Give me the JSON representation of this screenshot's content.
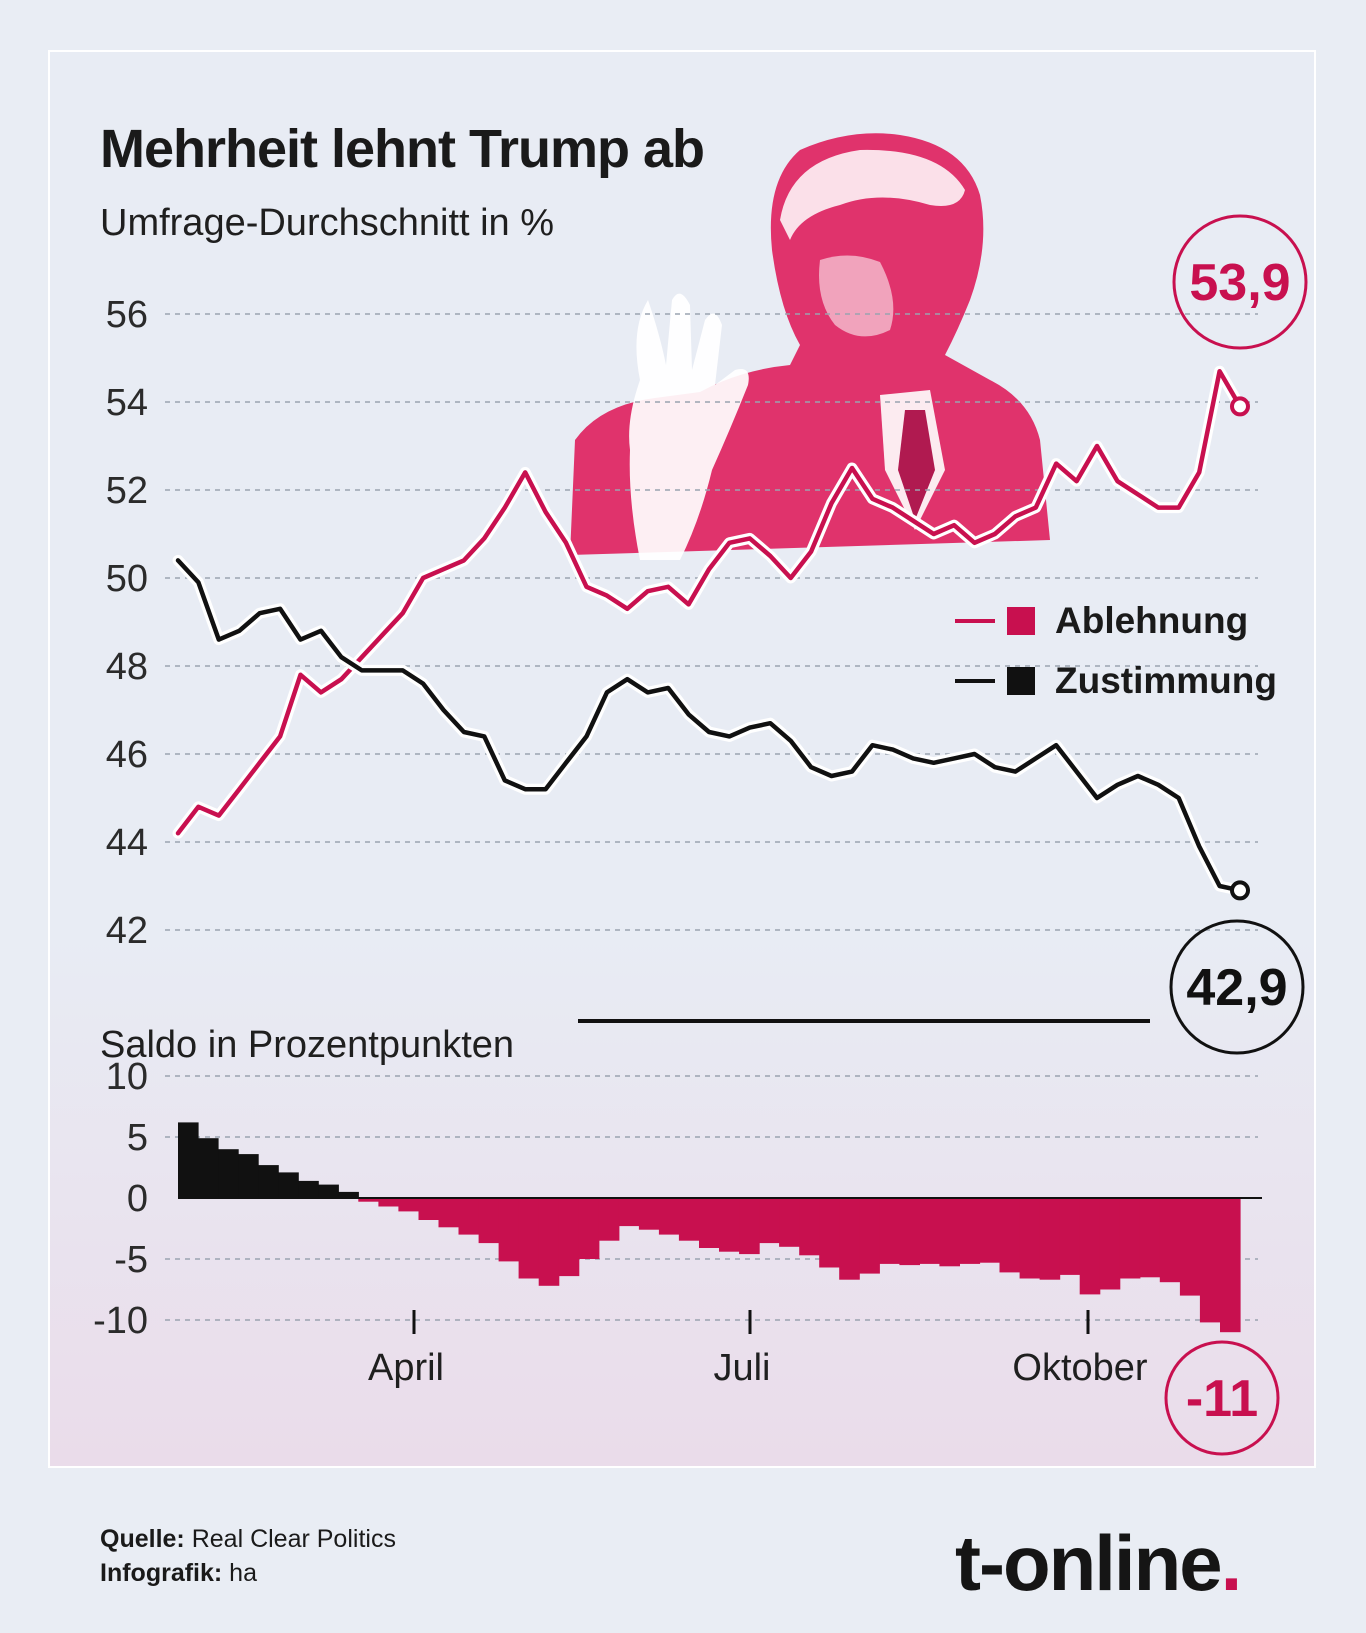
{
  "title": "Mehrheit lehnt Trump ab",
  "subtitle": "Umfrage-Durchschnitt in %",
  "saldo_label": "Saldo in Prozentpunkten",
  "source_label": "Quelle:",
  "source_value": "Real Clear Politics",
  "graphic_label": "Infografik:",
  "graphic_value": "ha",
  "brand": "t-online",
  "brand_dot": ".",
  "colors": {
    "ablehnung": "#c8104f",
    "zustimmung": "#111111",
    "illustration": "#e0336c"
  },
  "illustration_icon": "person-illustration",
  "chart_data": [
    {
      "type": "line",
      "title": "Mehrheit lehnt Trump ab",
      "ylabel": "Umfrage-Durchschnitt in %",
      "ylim": [
        42,
        56
      ],
      "yticks": [
        "56",
        "54",
        "52",
        "50",
        "48",
        "46",
        "44",
        "42"
      ],
      "xticks": [
        "April",
        "Juli",
        "Oktober"
      ],
      "legend": "right",
      "grid": true,
      "series": [
        {
          "name": "Ablehnung",
          "final_label": "53,9",
          "values": [
            44.2,
            44.8,
            44.6,
            45.2,
            45.8,
            46.4,
            47.8,
            47.4,
            47.7,
            48.2,
            48.7,
            49.2,
            50.0,
            50.2,
            50.4,
            50.9,
            51.6,
            52.4,
            51.5,
            50.8,
            49.8,
            49.6,
            49.3,
            49.7,
            49.8,
            49.4,
            50.2,
            50.8,
            50.9,
            50.5,
            50.0,
            50.6,
            51.7,
            52.5,
            51.8,
            51.6,
            51.3,
            51.0,
            51.2,
            50.8,
            51.0,
            51.4,
            51.6,
            52.6,
            52.2,
            53.0,
            52.2,
            51.9,
            51.6,
            51.6,
            52.4,
            54.7,
            53.9
          ]
        },
        {
          "name": "Zustimmung",
          "final_label": "42,9",
          "values": [
            50.4,
            49.9,
            48.6,
            48.8,
            49.2,
            49.3,
            48.6,
            48.8,
            48.2,
            47.9,
            47.9,
            47.9,
            47.6,
            47.0,
            46.5,
            46.4,
            45.4,
            45.2,
            45.2,
            45.8,
            46.4,
            47.4,
            47.7,
            47.4,
            47.5,
            46.9,
            46.5,
            46.4,
            46.6,
            46.7,
            46.3,
            45.7,
            45.5,
            45.6,
            46.2,
            46.1,
            45.9,
            45.8,
            45.9,
            46.0,
            45.7,
            45.6,
            45.9,
            46.2,
            45.6,
            45.0,
            45.3,
            45.5,
            45.3,
            45.0,
            43.9,
            43.0,
            42.9
          ]
        }
      ]
    },
    {
      "type": "bar",
      "title": "Saldo in Prozentpunkten",
      "ylim": [
        -11,
        10
      ],
      "yticks": [
        "10",
        "5",
        "0",
        "-5",
        "-10"
      ],
      "xticks": [
        "April",
        "Juli",
        "Oktober"
      ],
      "final_label": "-11",
      "values": [
        6.2,
        4.9,
        4.0,
        3.6,
        2.7,
        2.1,
        1.4,
        1.1,
        0.5,
        -0.3,
        -0.7,
        -1.1,
        -1.8,
        -2.4,
        -3.0,
        -3.7,
        -5.2,
        -6.6,
        -7.2,
        -6.4,
        -5.0,
        -3.5,
        -2.3,
        -2.6,
        -3.0,
        -3.5,
        -4.1,
        -4.4,
        -4.6,
        -3.7,
        -4.0,
        -4.7,
        -5.7,
        -6.7,
        -6.2,
        -5.4,
        -5.5,
        -5.4,
        -5.6,
        -5.4,
        -5.3,
        -6.1,
        -6.6,
        -6.7,
        -6.3,
        -7.9,
        -7.5,
        -6.6,
        -6.5,
        -6.9,
        -8.0,
        -10.2,
        -11.0
      ]
    }
  ]
}
